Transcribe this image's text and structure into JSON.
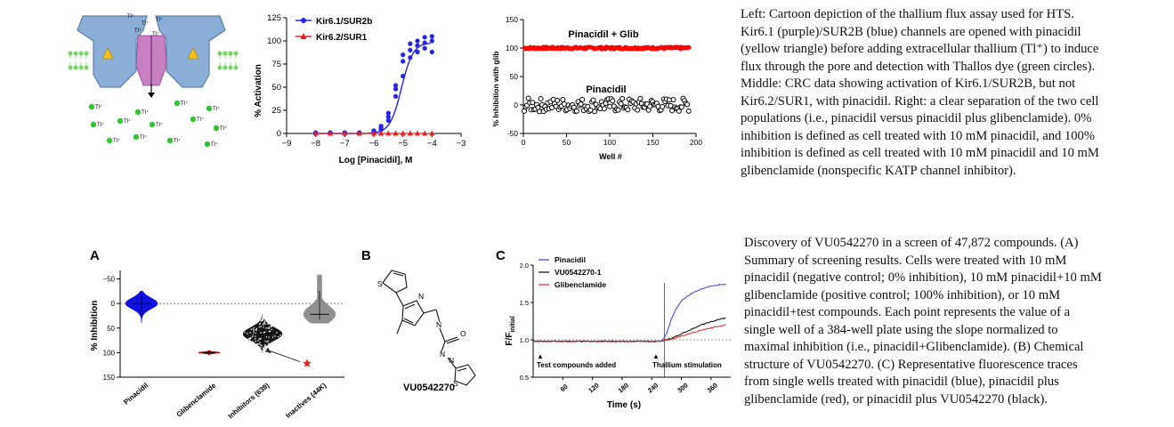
{
  "top": {
    "cartoon": {
      "ion_labels": [
        "Tl⁺",
        "Tl⁺",
        "Tl⁺",
        "Tl⁺",
        "Tl⁺",
        "Tl⁺",
        "Tl⁺",
        "Tl⁺",
        "Tl⁺",
        "Tl⁺",
        "Tl⁺",
        "Tl⁺",
        "Tl⁺",
        "Tl⁺",
        "Tl⁺",
        "Tl⁺",
        "Tl⁺",
        "Tl⁺"
      ],
      "colors": {
        "channel": "#8aaed8",
        "pore": "#c97fc4",
        "membrane": "#7fd46f",
        "drug": "#f2c21a",
        "dye": "#35c437"
      }
    },
    "crc": {
      "legend": [
        "Kir6.1/SUR2b",
        "Kir6.2/SUR1"
      ],
      "xlabel": "Log [Pinacidil], M",
      "ylabel": "% Activation",
      "xticks": [
        "−9",
        "−8",
        "−7",
        "−6",
        "−5",
        "−4",
        "−3"
      ],
      "yticks": [
        "0",
        "25",
        "50",
        "75",
        "100",
        "125"
      ]
    },
    "hts": {
      "ylabel": "% Inhibition with glib",
      "xlabel": "Well #",
      "label_top": "Pinacidil + Glib",
      "label_bottom": "Pinacidil",
      "xticks": [
        "0",
        "50",
        "100",
        "150",
        "200"
      ],
      "yticks": [
        "-50",
        "0",
        "50",
        "100",
        "150"
      ]
    },
    "caption": [
      "Left: Cartoon depiction of the thallium flux assay used for HTS.",
      "Kir6.1 (purple)/SUR2B (blue) channels are opened with pinacidil",
      "(yellow triangle) before adding extracellular thallium (Tl⁺) to induce",
      "flux through the pore and detection with Thallos dye (green circles).",
      "Middle: CRC data showing activation of Kir6.1/SUR2B, but not",
      "Kir6.2/SUR1, with pinacidil. Right: a clear separation of the two cell",
      "populations (i.e., pinacidil versus pinacidil plus glibenclamide). 0%",
      "inhibition is defined as cell treated with 10 mM pinacidil, and 100%",
      "inhibition is defined as cell treated with 10 mM pinacidil and 10 mM",
      "glibenclamide (nonspecific KATP channel inhibitor)."
    ]
  },
  "bottom": {
    "panel_a": {
      "letter": "A",
      "ylabel": "% Inhibition",
      "yticks": [
        "−50",
        "0",
        "50",
        "100",
        "150"
      ],
      "categories": [
        "Pinacidil",
        "Glibenclamide",
        "Inhibitors (639)",
        "Inactives (44K)"
      ]
    },
    "panel_b": {
      "letter": "B",
      "compound": "VU0542270",
      "atoms": [
        "S",
        "N",
        "N",
        "N",
        "O",
        "N",
        "S"
      ]
    },
    "panel_c": {
      "letter": "C",
      "ylabel_main": "F/F",
      "ylabel_sub": "initial",
      "xlabel": "Time (s)",
      "yticks": [
        "0.5",
        "1.0",
        "1.5",
        "2.0"
      ],
      "xticks": [
        "60",
        "120",
        "180",
        "240",
        "300",
        "360"
      ],
      "legend": [
        "Pinacidil",
        "VU0542270-1",
        "Glibenclamide"
      ],
      "annot_left": "Test compounds added",
      "annot_right": "Thallium stimulation",
      "arrow_glyph": "▲"
    },
    "caption": [
      "Discovery of VU0542270 in a screen of 47,872 compounds. (A)",
      "Summary of screening results. Cells were treated with 10 mM",
      "pinacidil (negative control; 0% inhibition), 10 mM pinacidil+10 mM",
      "glibenclamide (positive control; 100% inhibition), or 10 mM",
      "pinacidil+test compounds. Each point represents the value of a",
      "single well of a 384-well plate using the slope normalized to",
      "maximal inhibition (i.e., pinacidil+Glibenclamide). (B) Chemical",
      "structure of VU0542270. (C) Representative fluorescence traces",
      "from single wells treated with pinacidil (blue), pinacidil plus",
      "glibenclamide (red), or pinacidil plus VU0542270 (black)."
    ]
  },
  "chart_data": [
    {
      "type": "scatter",
      "title": "",
      "xlabel": "Log [Pinacidil], M",
      "ylabel": "% Activation",
      "xlim": [
        -9,
        -3
      ],
      "ylim": [
        0,
        125
      ],
      "series": [
        {
          "name": "Kir6.1/SUR2b",
          "color": "#2424e6",
          "x": [
            -8,
            -8,
            -8,
            -7.5,
            -7.5,
            -7.5,
            -7,
            -7,
            -7,
            -6.5,
            -6.5,
            -6.5,
            -6,
            -6,
            -6,
            -5.75,
            -5.75,
            -5.75,
            -5.5,
            -5.5,
            -5.5,
            -5.25,
            -5.25,
            -5.25,
            -5,
            -5,
            -5,
            -4.75,
            -4.75,
            -4.75,
            -4.5,
            -4.5,
            -4.5,
            -4.25,
            -4.25,
            -4.25,
            -4,
            -4,
            -4
          ],
          "y": [
            0,
            1,
            0,
            0,
            1,
            0,
            0,
            1,
            0,
            0,
            0,
            1,
            1,
            2,
            3,
            4,
            6,
            8,
            14,
            18,
            22,
            40,
            48,
            52,
            62,
            78,
            85,
            82,
            90,
            97,
            88,
            95,
            100,
            92,
            98,
            104,
            88,
            100,
            105
          ]
        },
        {
          "name": "Kir6.2/SUR1",
          "color": "#e32020",
          "x": [
            -8,
            -7.5,
            -7,
            -6.5,
            -6,
            -5.75,
            -5.5,
            -5.25,
            -5,
            -4.75,
            -4.5,
            -4.25,
            -4
          ],
          "y": [
            0,
            0,
            0,
            0,
            0,
            0,
            0,
            0,
            0,
            0,
            0,
            0,
            0
          ]
        }
      ]
    },
    {
      "type": "scatter",
      "title": "",
      "xlabel": "Well #",
      "ylabel": "% Inhibition with glib",
      "xlim": [
        0,
        200
      ],
      "ylim": [
        -50,
        150
      ],
      "series": [
        {
          "name": "Pinacidil + Glib",
          "color": "#ff0000",
          "x_range": [
            1,
            192
          ],
          "y_mean": 100,
          "y_spread": 4
        },
        {
          "name": "Pinacidil",
          "color": "#000000",
          "x_range": [
            1,
            192
          ],
          "y_mean": 0,
          "y_spread": 12
        }
      ]
    },
    {
      "type": "scatter",
      "title": "",
      "xlabel": "",
      "ylabel": "% Inhibition",
      "ylim": [
        150,
        -60
      ],
      "categories": [
        "Pinacidil",
        "Glibenclamide",
        "Inhibitors (639)",
        "Inactives (44K)"
      ],
      "series": [
        {
          "name": "Pinacidil",
          "color": "#1010e0",
          "median": 0,
          "range": [
            -25,
            40
          ]
        },
        {
          "name": "Glibenclamide",
          "color": "#c00000",
          "median": 100,
          "range": [
            95,
            104
          ]
        },
        {
          "name": "Inhibitors (639)",
          "color": "#000000",
          "median": 62,
          "range": [
            22,
            100
          ]
        },
        {
          "name": "Inactives (44K)",
          "color": "#909090",
          "median": 22,
          "range": [
            -58,
            40
          ]
        }
      ],
      "highlight": {
        "label": "VU0542270",
        "value": 122,
        "color": "#e31c1c"
      }
    },
    {
      "type": "line",
      "title": "",
      "xlabel": "Time (s)",
      "ylabel": "F/F initial",
      "xlim": [
        0,
        400
      ],
      "ylim": [
        0.5,
        2.0
      ],
      "series": [
        {
          "name": "Pinacidil",
          "color": "#3b3bea",
          "x": [
            0,
            260,
            270,
            280,
            290,
            300,
            320,
            340,
            360,
            380,
            390
          ],
          "y": [
            0.98,
            0.98,
            1.08,
            1.28,
            1.42,
            1.52,
            1.62,
            1.68,
            1.72,
            1.74,
            1.74
          ]
        },
        {
          "name": "VU0542270-1",
          "color": "#000000",
          "x": [
            0,
            260,
            280,
            300,
            320,
            340,
            360,
            380,
            390
          ],
          "y": [
            0.98,
            0.98,
            1.02,
            1.08,
            1.14,
            1.2,
            1.24,
            1.28,
            1.29
          ]
        },
        {
          "name": "Glibenclamide",
          "color": "#e31c1c",
          "x": [
            0,
            260,
            280,
            300,
            320,
            340,
            360,
            380,
            390
          ],
          "y": [
            0.98,
            0.98,
            1.01,
            1.05,
            1.09,
            1.13,
            1.16,
            1.19,
            1.2
          ]
        }
      ]
    }
  ]
}
